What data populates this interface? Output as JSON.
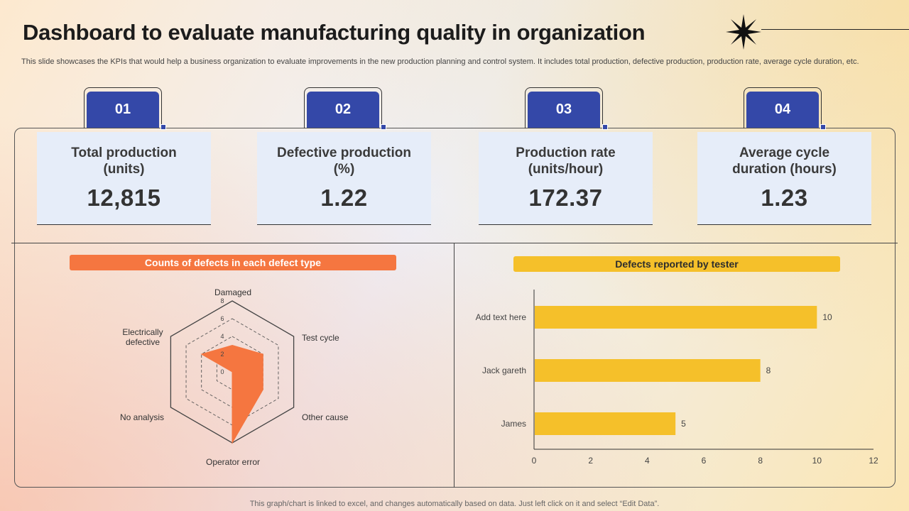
{
  "header": {
    "title": "Dashboard to evaluate manufacturing quality in organization",
    "subtitle": "This slide showcases the KPIs that would help a business organization to evaluate improvements in the new production planning and control system. It includes total production, defective production, production rate, average cycle duration, etc."
  },
  "kpis": [
    {
      "number": "01",
      "label": "Total production (units)",
      "value": "12,815"
    },
    {
      "number": "02",
      "label": "Defective production (%)",
      "value": "1.22"
    },
    {
      "number": "03",
      "label": "Production rate (units/hour)",
      "value": "172.37"
    },
    {
      "number": "04",
      "label": "Average cycle duration (hours)",
      "value": "1.23"
    }
  ],
  "colors": {
    "accent_blue": "#3448a8",
    "radar_fill": "#f57640",
    "bar_fill": "#f5c02a"
  },
  "chart_data": [
    {
      "type": "radar",
      "title": "Counts of defects in each defect type",
      "categories": [
        "Damaged",
        "Test cycle",
        "Other cause",
        "Operator error",
        "No analysis",
        "Electrically defective"
      ],
      "values": [
        3,
        4,
        4,
        8,
        0,
        4
      ],
      "rlim": [
        0,
        8
      ],
      "ticks": [
        0,
        2,
        4,
        6,
        8
      ],
      "grid": true
    },
    {
      "type": "bar",
      "orientation": "horizontal",
      "title": "Defects reported by tester",
      "categories": [
        "Add text here",
        "Jack gareth",
        "James"
      ],
      "values": [
        10,
        8,
        5
      ],
      "xlim": [
        0,
        12
      ],
      "xticks": [
        0,
        2,
        4,
        6,
        8,
        10,
        12
      ]
    }
  ],
  "footer": "This graph/chart is linked to excel,  and changes automatically based on data. Just left click on it and select “Edit Data”."
}
